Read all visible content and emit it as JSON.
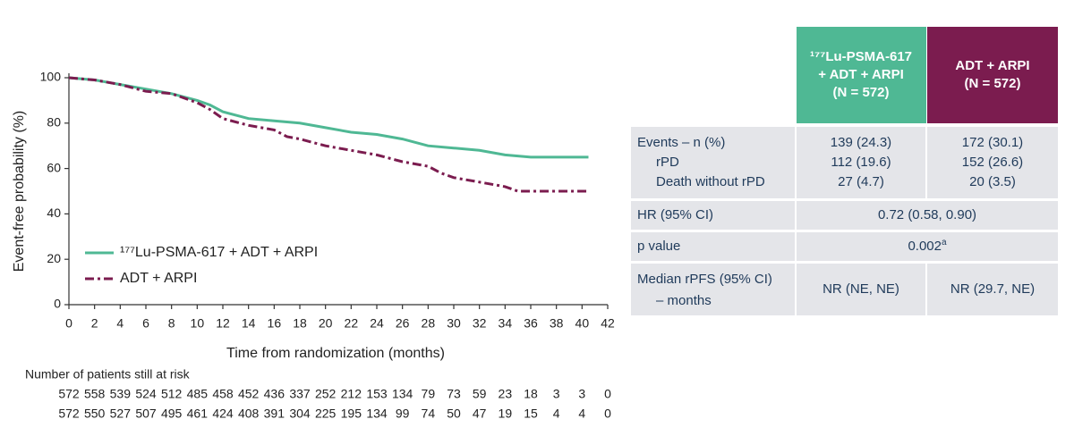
{
  "chart_data": {
    "type": "line",
    "step": true,
    "xlabel": "Time from randomization (months)",
    "ylabel": "Event-free probability (%)",
    "xlim": [
      0,
      42
    ],
    "xticks": [
      0,
      2,
      4,
      6,
      8,
      10,
      12,
      14,
      16,
      18,
      20,
      22,
      24,
      26,
      28,
      30,
      32,
      34,
      36,
      38,
      40,
      42
    ],
    "ylim": [
      0,
      100
    ],
    "yticks": [
      0,
      20,
      40,
      60,
      80,
      100
    ],
    "legend": "lower-left",
    "series": [
      {
        "name": "¹⁷⁷Lu-PSMA-617 + ADT + ARPI",
        "color": "#4fb894",
        "dash": false,
        "x": [
          0,
          2,
          4,
          6,
          8,
          10,
          11,
          12,
          14,
          16,
          18,
          20,
          22,
          24,
          26,
          28,
          30,
          32,
          34,
          36,
          38,
          40.5
        ],
        "values": [
          100,
          99,
          97,
          95,
          93,
          90,
          88,
          85,
          82,
          81,
          80,
          78,
          76,
          75,
          73,
          70,
          69,
          68,
          66,
          65,
          65,
          65
        ]
      },
      {
        "name": "ADT + ARPI",
        "color": "#7b1c4f",
        "dash": true,
        "x": [
          0,
          2,
          4,
          6,
          8,
          10,
          11,
          12,
          14,
          16,
          17,
          18,
          20,
          22,
          24,
          26,
          28,
          29,
          30,
          32,
          34,
          35,
          36,
          40.5
        ],
        "values": [
          100,
          99,
          97,
          94,
          93,
          89,
          86,
          82,
          79,
          77,
          74,
          73,
          70,
          68,
          66,
          63,
          61,
          58,
          56,
          54,
          52,
          50,
          50,
          50
        ]
      }
    ],
    "risk_table": {
      "title": "Number of patients still at risk",
      "rows": [
        [
          572,
          558,
          539,
          524,
          512,
          485,
          458,
          452,
          436,
          337,
          252,
          212,
          153,
          134,
          79,
          73,
          59,
          23,
          18,
          3,
          3,
          0
        ],
        [
          572,
          550,
          527,
          507,
          495,
          461,
          424,
          408,
          391,
          304,
          225,
          195,
          134,
          99,
          74,
          50,
          47,
          19,
          15,
          4,
          4,
          0
        ]
      ]
    }
  },
  "table": {
    "header": [
      [
        "¹⁷⁷Lu-PSMA-617",
        "+ ADT + ARPI",
        "(N = 572)"
      ],
      [
        "ADT + ARPI",
        "(N = 572)"
      ]
    ],
    "events": {
      "labels": [
        "Events – n (%)",
        "rPD",
        "Death without rPD"
      ],
      "col1": [
        "139 (24.3)",
        "112 (19.6)",
        "27 (4.7)"
      ],
      "col2": [
        "172 (30.1)",
        "152 (26.6)",
        "20 (3.5)"
      ]
    },
    "hr": {
      "label": "HR (95% CI)",
      "value": "0.72 (0.58, 0.90)"
    },
    "p": {
      "label": "p value",
      "value": "0.002",
      "note": "a"
    },
    "median": {
      "labels": [
        "Median rPFS (95% CI)",
        "– months"
      ],
      "col1": "NR (NE, NE)",
      "col2": "NR (29.7, NE)"
    }
  }
}
